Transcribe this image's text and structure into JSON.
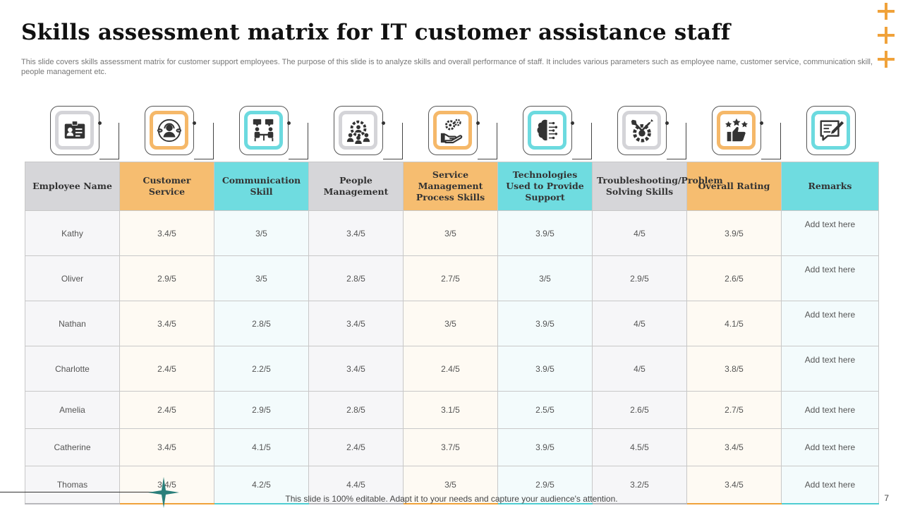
{
  "title": "Skills assessment matrix for IT customer assistance staff",
  "subtitle": "This slide covers skills assessment matrix for customer support employees. The purpose of this slide is to analyze skills and overall performance of staff. It includes various parameters such as employee name, customer service, communication skill, people management etc.",
  "icons": [
    "id-card-icon",
    "customer-service-headset-icon",
    "communication-meeting-icon",
    "people-management-gear-icon",
    "service-management-hand-gears-icon",
    "technology-brain-circuit-icon",
    "troubleshooting-tools-gear-icon",
    "rating-thumbs-up-stars-icon",
    "remarks-note-pen-icon"
  ],
  "colors": {
    "gray": "#d6d6d9",
    "orange": "#f6bd70",
    "teal": "#6fdce0",
    "accent": "#f0a23a",
    "star": "#2a7f7a"
  },
  "table": {
    "headers": [
      "Employee Name",
      "Customer Service",
      "Communication Skill",
      "People Management",
      "Service Management Process Skills",
      "Technologies Used to Provide Support",
      "Troubleshooting/Problem Solving Skills",
      "Overall Rating",
      "Remarks"
    ],
    "rows": [
      [
        "Kathy",
        "3.4/5",
        "3/5",
        "3.4/5",
        "3/5",
        "3.9/5",
        "4/5",
        "3.9/5",
        "Add text here"
      ],
      [
        "Oliver",
        "2.9/5",
        "3/5",
        "2.8/5",
        "2.7/5",
        "3/5",
        "2.9/5",
        "2.6/5",
        "Add text here"
      ],
      [
        "Nathan",
        "3.4/5",
        "2.8/5",
        "3.4/5",
        "3/5",
        "3.9/5",
        "4/5",
        "4.1/5",
        "Add text here"
      ],
      [
        "Charlotte",
        "2.4/5",
        "2.2/5",
        "3.4/5",
        "2.4/5",
        "3.9/5",
        "4/5",
        "3.8/5",
        "Add text here"
      ],
      [
        "Amelia",
        "2.4/5",
        "2.9/5",
        "2.8/5",
        "3.1/5",
        "2.5/5",
        "2.6/5",
        "2.7/5",
        "Add text here"
      ],
      [
        "Catherine",
        "3.4/5",
        "4.1/5",
        "2.4/5",
        "3.7/5",
        "3.9/5",
        "4.5/5",
        "3.4/5",
        "Add text here"
      ],
      [
        "Thomas",
        "3.4/5",
        "4.2/5",
        "4.4/5",
        "3/5",
        "2.9/5",
        "3.2/5",
        "3.4/5",
        "Add text here"
      ]
    ]
  },
  "footer": "This slide is 100% editable. Adapt it to your needs and capture your audience's attention.",
  "page_number": "7"
}
